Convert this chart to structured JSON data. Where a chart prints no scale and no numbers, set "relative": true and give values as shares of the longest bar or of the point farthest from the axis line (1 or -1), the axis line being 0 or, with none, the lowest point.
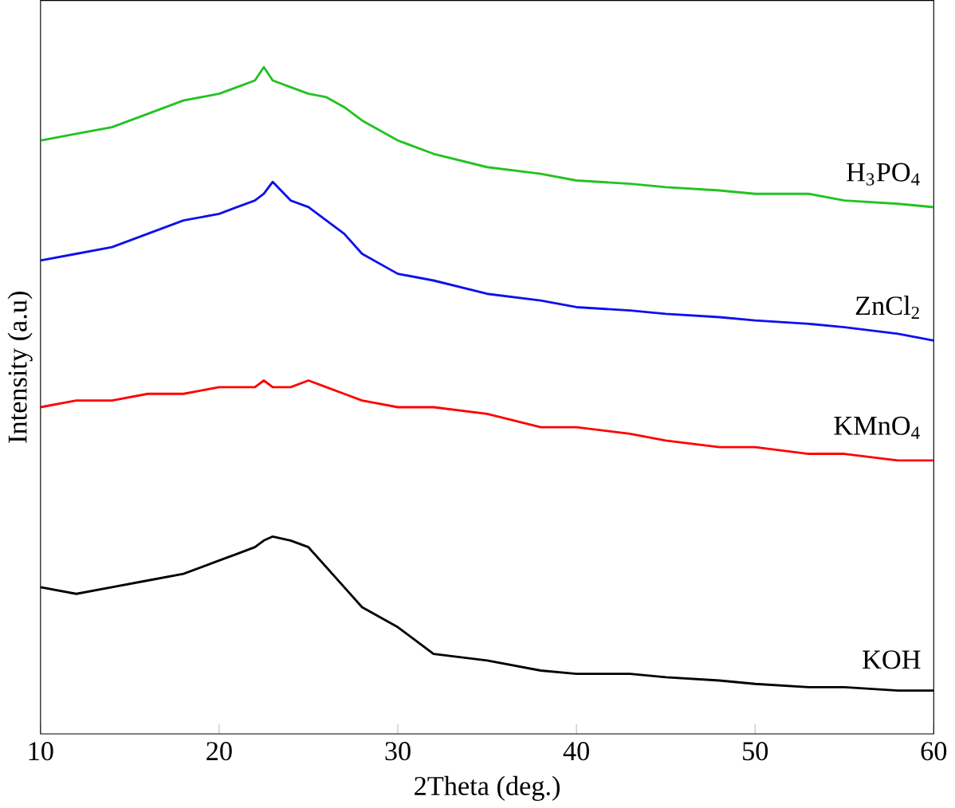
{
  "chart_data": {
    "type": "line",
    "xlabel": "2Theta (deg.)",
    "ylabel": "Intensity (a.u)",
    "relative": true,
    "xlim": [
      10,
      60
    ],
    "xticks": [
      10,
      20,
      30,
      40,
      50,
      60
    ],
    "tick_labels": "x",
    "series": [
      {
        "name": "H$_{3}$PO$_{4}$",
        "color": "#22c322",
        "x": [
          10,
          12,
          14,
          16,
          18,
          20,
          21,
          22,
          22.5,
          23,
          24,
          25,
          26,
          27,
          28,
          30,
          32,
          35,
          38,
          40,
          43,
          45,
          48,
          50,
          53,
          55,
          58,
          60
        ],
        "values": [
          0.89,
          0.9,
          0.91,
          0.93,
          0.95,
          0.96,
          0.97,
          0.98,
          1.0,
          0.98,
          0.97,
          0.96,
          0.955,
          0.94,
          0.92,
          0.89,
          0.87,
          0.85,
          0.84,
          0.83,
          0.825,
          0.82,
          0.815,
          0.81,
          0.81,
          0.8,
          0.795,
          0.79
        ]
      },
      {
        "name": "ZnCl$_{2}$",
        "color": "#1010ee",
        "x": [
          10,
          12,
          14,
          16,
          18,
          20,
          21,
          22,
          22.5,
          23,
          24,
          25,
          26,
          27,
          28,
          30,
          32,
          35,
          38,
          40,
          43,
          45,
          48,
          50,
          53,
          55,
          58,
          60
        ],
        "values": [
          0.71,
          0.72,
          0.73,
          0.75,
          0.77,
          0.78,
          0.79,
          0.8,
          0.81,
          0.828,
          0.8,
          0.79,
          0.77,
          0.75,
          0.72,
          0.69,
          0.68,
          0.66,
          0.65,
          0.64,
          0.635,
          0.63,
          0.625,
          0.62,
          0.615,
          0.61,
          0.6,
          0.59
        ]
      },
      {
        "name": "KMnO$_{4}$",
        "color": "#ff0000",
        "x": [
          10,
          12,
          14,
          16,
          18,
          20,
          21,
          22,
          22.5,
          23,
          24,
          25,
          26,
          27,
          28,
          30,
          32,
          35,
          38,
          40,
          43,
          45,
          48,
          50,
          53,
          55,
          58,
          60
        ],
        "values": [
          0.49,
          0.5,
          0.5,
          0.51,
          0.51,
          0.52,
          0.52,
          0.52,
          0.53,
          0.52,
          0.52,
          0.53,
          0.52,
          0.51,
          0.5,
          0.49,
          0.49,
          0.48,
          0.46,
          0.46,
          0.45,
          0.44,
          0.43,
          0.43,
          0.42,
          0.42,
          0.41,
          0.41
        ]
      },
      {
        "name": "KOH",
        "color": "#000000",
        "x": [
          10,
          12,
          14,
          16,
          18,
          20,
          21,
          22,
          22.5,
          23,
          24,
          25,
          26,
          27,
          28,
          30,
          32,
          35,
          38,
          40,
          43,
          45,
          48,
          50,
          53,
          55,
          58,
          60
        ],
        "values": [
          0.22,
          0.21,
          0.22,
          0.23,
          0.24,
          0.26,
          0.27,
          0.28,
          0.29,
          0.296,
          0.29,
          0.28,
          0.25,
          0.22,
          0.19,
          0.16,
          0.12,
          0.11,
          0.095,
          0.09,
          0.09,
          0.085,
          0.08,
          0.075,
          0.07,
          0.07,
          0.065,
          0.065
        ]
      }
    ]
  }
}
